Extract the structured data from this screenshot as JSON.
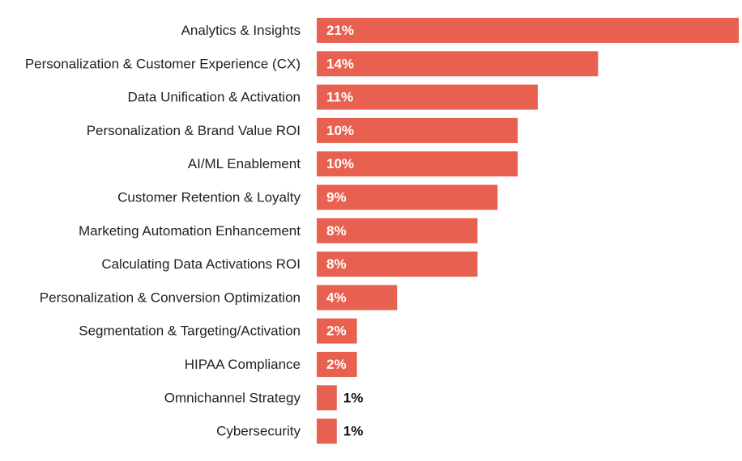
{
  "colors": {
    "bar": "#E8604F",
    "background": "#FFFFFF"
  },
  "chart_data": {
    "type": "bar",
    "orientation": "horizontal",
    "title": "",
    "xlabel": "",
    "ylabel": "",
    "xlim": [
      0,
      21
    ],
    "grid": false,
    "legend": "none",
    "categories": [
      "Analytics & Insights",
      "Personalization & Customer Experience (CX)",
      "Data Unification & Activation",
      "Personalization & Brand Value ROI",
      "AI/ML Enablement",
      "Customer Retention & Loyalty",
      "Marketing Automation Enhancement",
      "Calculating Data Activations ROI",
      "Personalization & Conversion Optimization",
      "Segmentation & Targeting/Activation",
      "HIPAA Compliance",
      "Omnichannel Strategy",
      "Cybersecurity"
    ],
    "values": [
      21,
      14,
      11,
      10,
      10,
      9,
      8,
      8,
      4,
      2,
      2,
      1,
      1
    ],
    "value_labels": [
      "21%",
      "14%",
      "11%",
      "10%",
      "10%",
      "9%",
      "8%",
      "8%",
      "4%",
      "2%",
      "2%",
      "1%",
      "1%"
    ]
  }
}
